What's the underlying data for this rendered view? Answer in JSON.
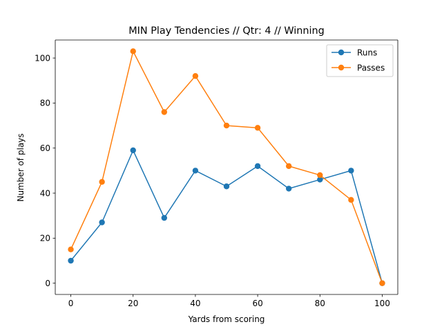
{
  "chart_data": {
    "type": "line",
    "title": "MIN Play Tendencies // Qtr: 4 // Winning",
    "xlabel": "Yards from scoring",
    "ylabel": "Number of plays",
    "xlim": [
      -5,
      105
    ],
    "ylim": [
      -5,
      108
    ],
    "xticks": [
      0,
      20,
      40,
      60,
      80,
      100
    ],
    "yticks": [
      0,
      20,
      40,
      60,
      80,
      100
    ],
    "grid": false,
    "legend_position": "upper-right",
    "x": [
      0,
      10,
      20,
      30,
      40,
      50,
      60,
      70,
      80,
      90,
      100
    ],
    "series": [
      {
        "name": "Runs",
        "color": "#1f77b4",
        "values": [
          10,
          27,
          59,
          29,
          50,
          43,
          52,
          42,
          46,
          50,
          0
        ]
      },
      {
        "name": "Passes",
        "color": "#ff7f0e",
        "values": [
          15,
          45,
          103,
          76,
          92,
          70,
          69,
          52,
          48,
          37,
          0
        ]
      }
    ]
  }
}
